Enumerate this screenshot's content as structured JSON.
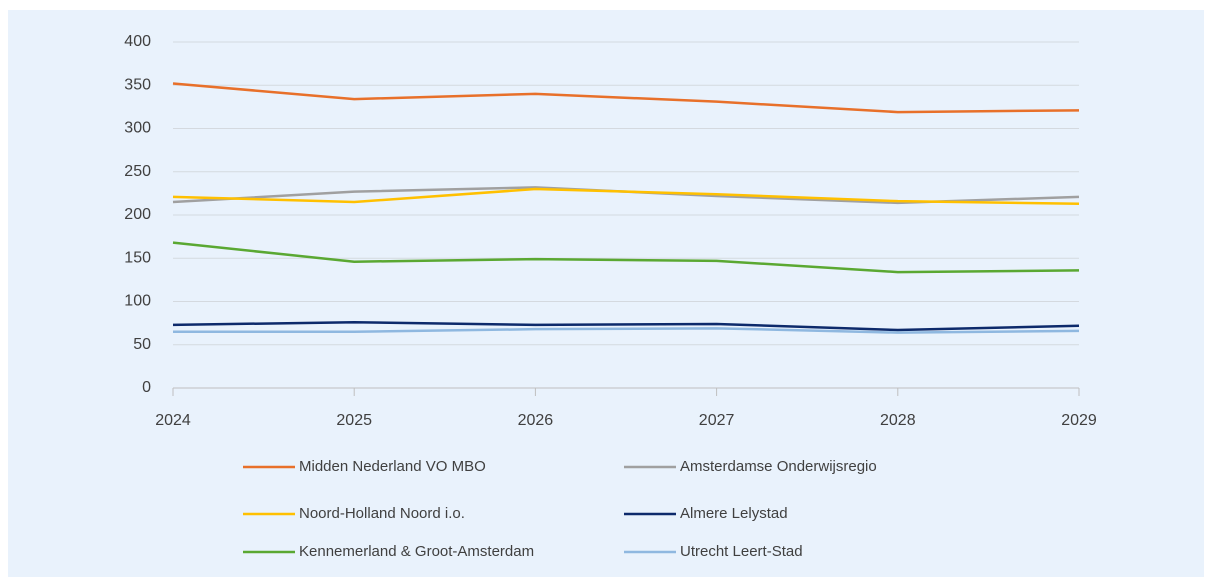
{
  "chart_data": {
    "type": "line",
    "x": [
      2024,
      2025,
      2026,
      2027,
      2028,
      2029
    ],
    "xlim": [
      2024,
      2029
    ],
    "xticks": [
      2024,
      2025,
      2026,
      2027,
      2028,
      2029
    ],
    "ylim": [
      0,
      400
    ],
    "yticks": [
      0,
      50,
      100,
      150,
      200,
      250,
      300,
      350,
      400
    ],
    "grid": true,
    "legend": "bottom",
    "series": [
      {
        "name": "Midden Nederland VO MBO",
        "color": "#e8702a",
        "values": [
          352,
          334,
          340,
          331,
          319,
          321
        ]
      },
      {
        "name": "Amsterdamse Onderwijsregio",
        "color": "#a0a0a0",
        "values": [
          215,
          227,
          232,
          222,
          214,
          221
        ]
      },
      {
        "name": "Noord-Holland Noord i.o.",
        "color": "#ffc000",
        "values": [
          221,
          215,
          230,
          224,
          216,
          213
        ]
      },
      {
        "name": "Almere Lelystad",
        "color": "#0d2a6b",
        "values": [
          73,
          76,
          73,
          74,
          67,
          72
        ]
      },
      {
        "name": "Kennemerland & Groot-Amsterdam",
        "color": "#5aa832",
        "values": [
          168,
          146,
          149,
          147,
          134,
          136
        ]
      },
      {
        "name": "Utrecht Leert-Stad",
        "color": "#8fb8e0",
        "values": [
          65,
          65,
          68,
          69,
          64,
          66
        ]
      }
    ]
  }
}
